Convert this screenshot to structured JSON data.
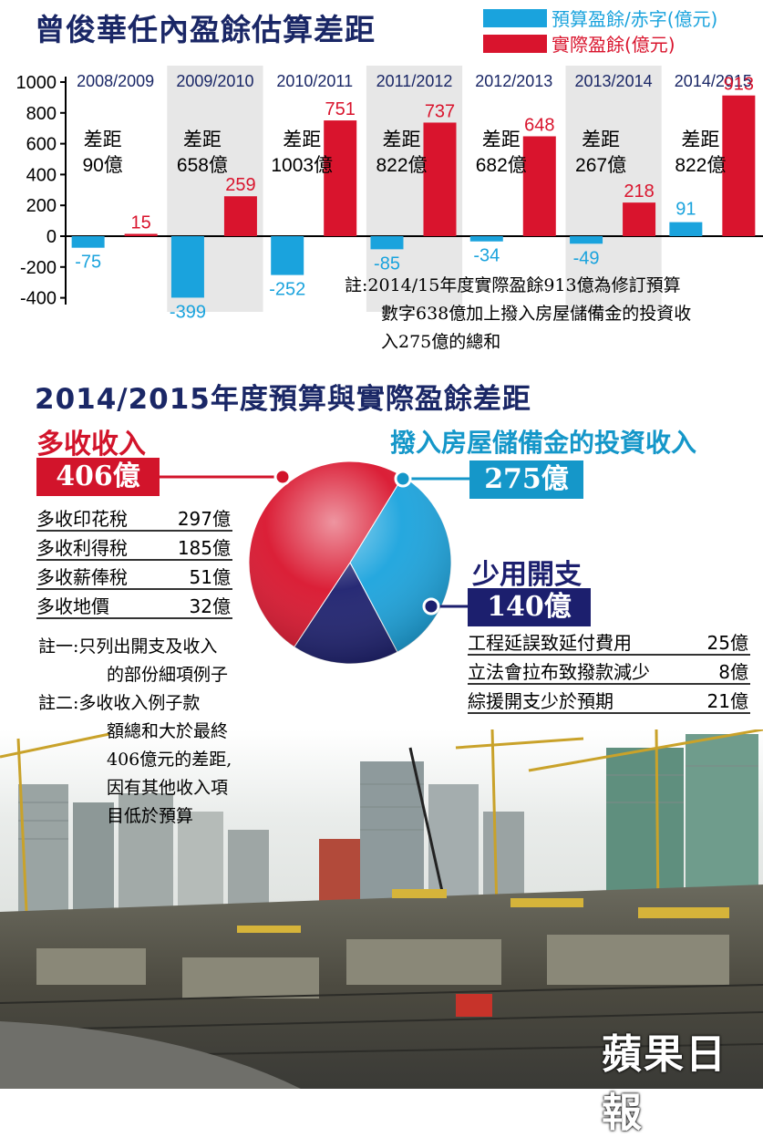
{
  "chart_data": [
    {
      "type": "bar",
      "title": "曾俊華任內盈餘估算差距",
      "categories": [
        "2008/2009",
        "2009/2010",
        "2010/2011",
        "2011/2012",
        "2012/2013",
        "2013/2014",
        "2014/2015"
      ],
      "series": [
        {
          "name": "預算盈餘/赤字(億元)",
          "values": [
            -75,
            -399,
            -252,
            -85,
            -34,
            -49,
            91
          ],
          "color": "#1aa3dd"
        },
        {
          "name": "實際盈餘(億元)",
          "values": [
            15,
            259,
            751,
            737,
            648,
            218,
            913
          ],
          "color": "#d9142d"
        }
      ],
      "gap_labels": [
        {
          "top": "差距",
          "bottom": "90億"
        },
        {
          "top": "差距",
          "bottom": "658億"
        },
        {
          "top": "差距",
          "bottom": "1003億"
        },
        {
          "top": "差距",
          "bottom": "822億"
        },
        {
          "top": "差距",
          "bottom": "682億"
        },
        {
          "top": "差距",
          "bottom": "267億"
        },
        {
          "top": "差距",
          "bottom": "822億"
        }
      ],
      "yticks": [
        "1000",
        "800",
        "600",
        "400",
        "200",
        "0",
        "-200",
        "-400"
      ],
      "ylim": [
        -400,
        1000
      ],
      "legend_position": "top-right"
    },
    {
      "type": "pie",
      "title": "2014/2015年度預算與實際盈餘差距",
      "slices": [
        {
          "label": "多收收入",
          "value": 406,
          "display": "406億",
          "color": "#d9142d"
        },
        {
          "label": "撥入房屋儲備金的投資收入",
          "value": 275,
          "display": "275億",
          "color": "#1aa3dd"
        },
        {
          "label": "少用開支",
          "value": 140,
          "display": "140億",
          "color": "#1c1f6e"
        }
      ]
    }
  ],
  "note_top": [
    "註:2014/15年度實際盈餘913億為修訂預算",
    "數字638億加上撥入房屋儲備金的投資收",
    "入275億的總和"
  ],
  "revenue_items": [
    {
      "label": "多收印花稅",
      "value": "297億"
    },
    {
      "label": "多收利得稅",
      "value": "185億"
    },
    {
      "label": "多收薪俸稅",
      "value": "51億"
    },
    {
      "label": "多收地價",
      "value": "32億"
    }
  ],
  "spending_items": [
    {
      "label": "工程延誤致延付費用",
      "value": "25億"
    },
    {
      "label": "立法會拉布致撥款減少",
      "value": "8億"
    },
    {
      "label": "綜援開支少於預期",
      "value": "21億"
    }
  ],
  "notes_bottom": [
    "註一:只列出開支及收入",
    "的部份細項例子",
    "註二:多收收入例子款",
    "額總和大於最終",
    "406億元的差距,",
    "因有其他收入項",
    "目低於預算"
  ],
  "watermark": "蘋果日報"
}
